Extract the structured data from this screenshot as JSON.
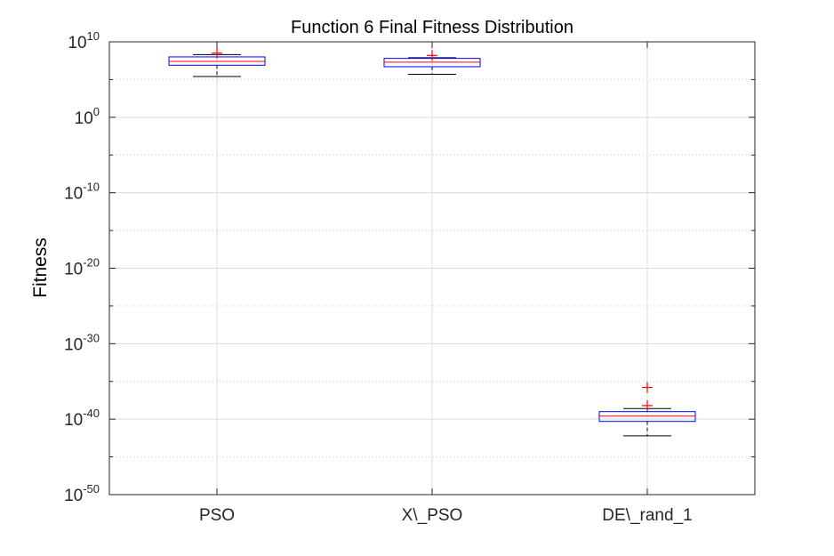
{
  "chart_data": {
    "type": "box",
    "title": "Function 6 Final Fitness Distribution",
    "xlabel": "",
    "ylabel": "Fitness",
    "yscale": "log",
    "ylim_exponent": [
      -50,
      10
    ],
    "y_tick_exponents": [
      -50,
      -40,
      -30,
      -20,
      -10,
      0,
      10
    ],
    "y_tick_labels": [
      {
        "base": "10",
        "exp": "-50"
      },
      {
        "base": "10",
        "exp": "-40"
      },
      {
        "base": "10",
        "exp": "-30"
      },
      {
        "base": "10",
        "exp": "-20"
      },
      {
        "base": "10",
        "exp": "-10"
      },
      {
        "base": "10",
        "exp": "0"
      },
      {
        "base": "10",
        "exp": "10"
      }
    ],
    "grid": true,
    "categories": [
      "PSO",
      "X\\_PSO",
      "DE\\_rand_1"
    ],
    "boxes": [
      {
        "category": "PSO",
        "whisker_low_exp": 5.4,
        "q1_exp": 6.9,
        "median_exp": 7.4,
        "q3_exp": 8.0,
        "whisker_high_exp": 8.3,
        "outliers_exp": [
          8.5
        ]
      },
      {
        "category": "X\\_PSO",
        "whisker_low_exp": 5.7,
        "q1_exp": 6.7,
        "median_exp": 7.3,
        "q3_exp": 7.8,
        "whisker_high_exp": 7.9,
        "outliers_exp": [
          8.2
        ]
      },
      {
        "category": "DE\\_rand_1",
        "whisker_low_exp": -42.2,
        "q1_exp": -40.3,
        "median_exp": -39.6,
        "q3_exp": -39.0,
        "whisker_high_exp": -38.6,
        "outliers_exp": [
          -38.2,
          -35.8
        ]
      }
    ],
    "colors": {
      "box": "#0000ff",
      "median": "#ff0000",
      "whisker": "#000000",
      "outlier": "#ff0000",
      "grid": "#dcdcdc",
      "axis": "#262626"
    }
  }
}
